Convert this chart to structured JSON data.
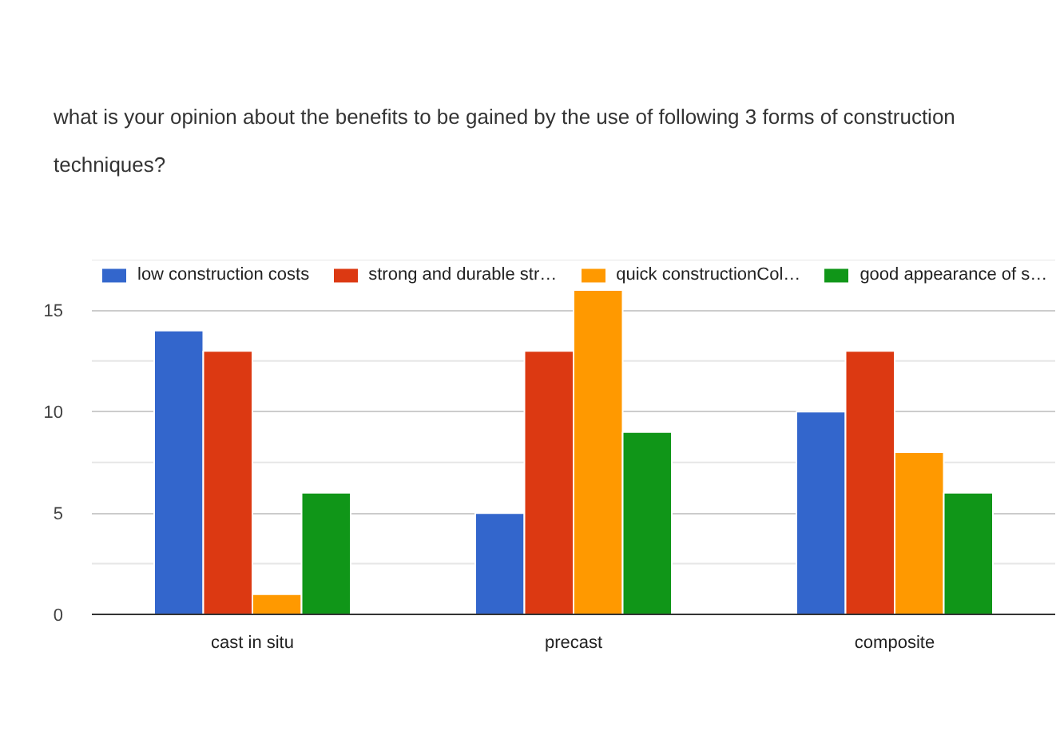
{
  "chart_data": {
    "type": "bar",
    "title": "what is your opinion about the benefits to be gained by the use of following 3 forms of construction techniques?",
    "categories": [
      "cast in situ",
      "precast",
      "composite"
    ],
    "series": [
      {
        "name": "low construction costs",
        "color": "#3366cc",
        "values": [
          14,
          5,
          10
        ]
      },
      {
        "name": "strong and durable str…",
        "color": "#dc3912",
        "values": [
          13,
          13,
          13
        ]
      },
      {
        "name": "quick constructionCol…",
        "color": "#ff9900",
        "values": [
          1,
          16,
          8
        ]
      },
      {
        "name": "good appearance of s…",
        "color": "#109618",
        "values": [
          6,
          9,
          6
        ]
      }
    ],
    "ylim": [
      0,
      17.5
    ],
    "yticks": [
      0,
      {
        "value": 2.5,
        "label": null
      },
      5,
      {
        "value": 7.5,
        "label": null
      },
      10,
      {
        "value": 12.5,
        "label": null
      },
      15,
      {
        "value": 17.5,
        "label": null
      }
    ],
    "grid": "y",
    "legend": "top"
  }
}
